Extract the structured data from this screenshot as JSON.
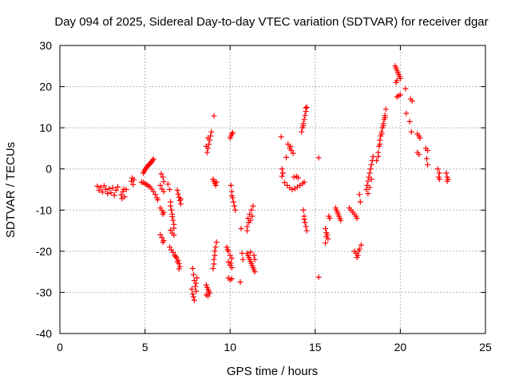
{
  "chart_data": {
    "type": "scatter",
    "title": "Day 094 of 2025, Sidereal Day-to-day VTEC variation (SDTVAR) for receiver dgar",
    "xlabel": "GPS time / hours",
    "ylabel": "SDTVAR / TECUs",
    "xlim": [
      0,
      25
    ],
    "ylim": [
      -40,
      30
    ],
    "xticks": [
      "0",
      "5",
      "10",
      "15",
      "20",
      "25"
    ],
    "yticks": [
      "-40",
      "-30",
      "-20",
      "-10",
      "0",
      "10",
      "20",
      "30"
    ],
    "grid": true,
    "marker": "+",
    "marker_color": "#ff0000",
    "series": [
      {
        "name": "SDTVAR",
        "points": [
          [
            2.2,
            -4.2
          ],
          [
            2.3,
            -5.2
          ],
          [
            2.4,
            -4.5
          ],
          [
            2.5,
            -5.6
          ],
          [
            2.6,
            -4.1
          ],
          [
            2.7,
            -5.0
          ],
          [
            2.8,
            -6.0
          ],
          [
            2.9,
            -4.8
          ],
          [
            3.0,
            -5.8
          ],
          [
            3.1,
            -4.6
          ],
          [
            3.2,
            -6.4
          ],
          [
            3.3,
            -5.2
          ],
          [
            3.4,
            -4.4
          ],
          [
            3.6,
            -6.3
          ],
          [
            3.7,
            -5.5
          ],
          [
            3.8,
            -6.8
          ],
          [
            3.9,
            -5.0
          ],
          [
            3.65,
            -7.2
          ],
          [
            3.75,
            -4.9
          ],
          [
            4.2,
            -3.0
          ],
          [
            4.25,
            -2.2
          ],
          [
            4.3,
            -3.8
          ],
          [
            4.35,
            -2.6
          ],
          [
            4.8,
            -3.2
          ],
          [
            4.9,
            -1.0
          ],
          [
            5.0,
            -0.2
          ],
          [
            5.1,
            0.4
          ],
          [
            5.2,
            0.9
          ],
          [
            5.3,
            1.3
          ],
          [
            5.4,
            1.8
          ],
          [
            5.5,
            2.4
          ],
          [
            4.95,
            -0.6
          ],
          [
            5.05,
            0.1
          ],
          [
            5.15,
            0.7
          ],
          [
            5.25,
            1.1
          ],
          [
            5.35,
            1.6
          ],
          [
            5.45,
            2.1
          ],
          [
            4.9,
            -3.3
          ],
          [
            5.0,
            -3.6
          ],
          [
            5.1,
            -3.8
          ],
          [
            5.2,
            -4.1
          ],
          [
            5.3,
            -4.4
          ],
          [
            5.4,
            -4.9
          ],
          [
            5.5,
            -5.5
          ],
          [
            5.6,
            -6.2
          ],
          [
            5.7,
            -7.0
          ],
          [
            5.75,
            -7.5
          ],
          [
            5.9,
            -4.0
          ],
          [
            6.0,
            -4.9
          ],
          [
            6.1,
            -5.5
          ],
          [
            5.95,
            -1.2
          ],
          [
            6.05,
            -2.0
          ],
          [
            6.1,
            -3.1
          ],
          [
            5.9,
            -9.5
          ],
          [
            6.0,
            -10.1
          ],
          [
            6.1,
            -10.6
          ],
          [
            6.05,
            -11.0
          ],
          [
            5.9,
            -16.0
          ],
          [
            6.0,
            -16.7
          ],
          [
            6.1,
            -17.4
          ],
          [
            6.05,
            -17.8
          ],
          [
            6.35,
            -3.7
          ],
          [
            6.45,
            -5.0
          ],
          [
            6.5,
            -8.0
          ],
          [
            6.55,
            -10.0
          ],
          [
            6.6,
            -11.6
          ],
          [
            6.65,
            -12.5
          ],
          [
            6.7,
            -13.5
          ],
          [
            6.6,
            -11.0
          ],
          [
            6.5,
            -9.0
          ],
          [
            6.7,
            -14.4
          ],
          [
            6.5,
            -14.9
          ],
          [
            6.6,
            -15.6
          ],
          [
            6.7,
            -16.1
          ],
          [
            6.45,
            -19.0
          ],
          [
            6.55,
            -19.7
          ],
          [
            6.65,
            -20.3
          ],
          [
            6.75,
            -21.0
          ],
          [
            6.85,
            -21.6
          ],
          [
            6.95,
            -22.2
          ],
          [
            7.0,
            -23.0
          ],
          [
            7.05,
            -23.7
          ],
          [
            6.9,
            -22.6
          ],
          [
            6.8,
            -21.3
          ],
          [
            7.0,
            -24.3
          ],
          [
            6.9,
            -5.2
          ],
          [
            6.95,
            -6.1
          ],
          [
            7.0,
            -6.9
          ],
          [
            7.05,
            -7.7
          ],
          [
            7.1,
            -8.5
          ],
          [
            7.1,
            -7.3
          ],
          [
            7.8,
            -24.2
          ],
          [
            7.85,
            -25.7
          ],
          [
            7.9,
            -27.1
          ],
          [
            7.95,
            -28.6
          ],
          [
            8.0,
            -29.7
          ],
          [
            7.8,
            -30.4
          ],
          [
            7.85,
            -31.1
          ],
          [
            7.9,
            -31.9
          ],
          [
            8.0,
            -27.8
          ],
          [
            8.05,
            -26.5
          ],
          [
            7.75,
            -29.2
          ],
          [
            8.6,
            -28.2
          ],
          [
            8.65,
            -28.8
          ],
          [
            8.7,
            -29.3
          ],
          [
            8.75,
            -29.7
          ],
          [
            8.8,
            -30.2
          ],
          [
            8.6,
            -30.6
          ],
          [
            8.7,
            -30.9
          ],
          [
            8.65,
            4.0
          ],
          [
            8.7,
            5.0
          ],
          [
            8.75,
            6.0
          ],
          [
            8.8,
            7.0
          ],
          [
            8.85,
            8.0
          ],
          [
            8.9,
            9.0
          ],
          [
            8.6,
            5.5
          ],
          [
            8.7,
            7.5
          ],
          [
            9.0,
            -24.2
          ],
          [
            9.05,
            -22.0
          ],
          [
            9.1,
            -20.0
          ],
          [
            9.15,
            -19.0
          ],
          [
            9.2,
            -17.8
          ],
          [
            9.05,
            -23.1
          ],
          [
            9.1,
            -21.0
          ],
          [
            9.0,
            -2.5
          ],
          [
            9.05,
            -3.0
          ],
          [
            9.1,
            -3.5
          ],
          [
            9.15,
            -4.0
          ],
          [
            9.2,
            -3.2
          ],
          [
            9.05,
            12.9
          ],
          [
            9.8,
            -19.0
          ],
          [
            9.9,
            -20.0
          ],
          [
            10.0,
            -21.0
          ],
          [
            10.1,
            -21.7
          ],
          [
            9.85,
            -19.6
          ],
          [
            9.9,
            -22.6
          ],
          [
            10.0,
            -23.4
          ],
          [
            10.1,
            -24.0
          ],
          [
            10.05,
            -22.9
          ],
          [
            9.9,
            -26.5
          ],
          [
            10.0,
            -27.0
          ],
          [
            10.1,
            -26.7
          ],
          [
            10.0,
            7.5
          ],
          [
            10.05,
            8.0
          ],
          [
            10.1,
            8.5
          ],
          [
            10.15,
            8.8
          ],
          [
            10.05,
            -4.0
          ],
          [
            10.1,
            -5.5
          ],
          [
            10.15,
            -7.0
          ],
          [
            10.2,
            -8.0
          ],
          [
            10.25,
            -9.0
          ],
          [
            10.3,
            -10.0
          ],
          [
            10.1,
            -6.5
          ],
          [
            10.65,
            -14.5
          ],
          [
            10.7,
            -20.5
          ],
          [
            10.75,
            -22.0
          ],
          [
            10.6,
            -27.5
          ],
          [
            11.0,
            -14.0
          ],
          [
            11.05,
            -12.0
          ],
          [
            11.1,
            -13.0
          ],
          [
            11.15,
            -11.0
          ],
          [
            11.2,
            -12.5
          ],
          [
            11.25,
            -10.0
          ],
          [
            11.3,
            -11.5
          ],
          [
            11.35,
            -9.0
          ],
          [
            11.0,
            -15.0
          ],
          [
            11.0,
            -20.5
          ],
          [
            11.05,
            -21.0
          ],
          [
            11.1,
            -21.5
          ],
          [
            11.15,
            -22.0
          ],
          [
            11.2,
            -22.5
          ],
          [
            11.25,
            -23.0
          ],
          [
            11.3,
            -23.5
          ],
          [
            11.35,
            -24.0
          ],
          [
            11.4,
            -24.5
          ],
          [
            11.45,
            -25.0
          ],
          [
            11.2,
            -20.2
          ],
          [
            11.4,
            -21.0
          ],
          [
            11.45,
            -22.0
          ],
          [
            13.0,
            7.8
          ],
          [
            13.2,
            -3.3
          ],
          [
            13.35,
            -4.0
          ],
          [
            13.5,
            -4.6
          ],
          [
            13.65,
            -5.0
          ],
          [
            13.8,
            -4.8
          ],
          [
            13.95,
            -4.4
          ],
          [
            14.1,
            -4.0
          ],
          [
            14.25,
            -3.6
          ],
          [
            14.35,
            -3.2
          ],
          [
            13.4,
            6.0
          ],
          [
            13.5,
            5.0
          ],
          [
            13.6,
            4.5
          ],
          [
            13.7,
            3.8
          ],
          [
            13.55,
            5.5
          ],
          [
            13.05,
            0.0
          ],
          [
            13.1,
            -1.0
          ],
          [
            13.05,
            -1.8
          ],
          [
            13.3,
            2.8
          ],
          [
            13.75,
            -2.0
          ],
          [
            13.9,
            -1.8
          ],
          [
            14.0,
            -2.2
          ],
          [
            14.2,
            9.0
          ],
          [
            14.25,
            10.0
          ],
          [
            14.3,
            11.0
          ],
          [
            14.35,
            12.0
          ],
          [
            14.4,
            13.0
          ],
          [
            14.45,
            14.0
          ],
          [
            14.5,
            15.0
          ],
          [
            14.3,
            10.5
          ],
          [
            14.45,
            14.8
          ],
          [
            14.3,
            -10.0
          ],
          [
            14.35,
            -11.5
          ],
          [
            14.4,
            -13.0
          ],
          [
            14.45,
            -14.0
          ],
          [
            14.5,
            -15.0
          ],
          [
            14.35,
            -12.2
          ],
          [
            15.2,
            2.7
          ],
          [
            15.2,
            -26.3
          ],
          [
            15.6,
            -14.5
          ],
          [
            15.65,
            -15.5
          ],
          [
            15.7,
            -16.0
          ],
          [
            15.75,
            -17.0
          ],
          [
            15.6,
            -18.0
          ],
          [
            15.65,
            -16.5
          ],
          [
            15.8,
            -11.5
          ],
          [
            15.85,
            -12.0
          ],
          [
            16.2,
            -9.5
          ],
          [
            16.25,
            -10.0
          ],
          [
            16.3,
            -10.5
          ],
          [
            16.35,
            -11.0
          ],
          [
            16.4,
            -11.5
          ],
          [
            16.45,
            -12.0
          ],
          [
            16.5,
            -12.5
          ],
          [
            17.0,
            -9.5
          ],
          [
            17.1,
            -10.0
          ],
          [
            17.2,
            -10.5
          ],
          [
            17.3,
            -11.0
          ],
          [
            17.4,
            -11.5
          ],
          [
            17.45,
            -12.0
          ],
          [
            17.3,
            -20.0
          ],
          [
            17.4,
            -20.5
          ],
          [
            17.5,
            -21.0
          ],
          [
            17.6,
            -19.5
          ],
          [
            17.7,
            -18.5
          ],
          [
            17.45,
            -21.5
          ],
          [
            17.55,
            -20.0
          ],
          [
            17.6,
            -6.2
          ],
          [
            17.65,
            -8.0
          ],
          [
            18.0,
            -5.0
          ],
          [
            18.05,
            -4.0
          ],
          [
            18.1,
            -3.0
          ],
          [
            18.15,
            -2.0
          ],
          [
            18.2,
            -1.0
          ],
          [
            18.25,
            0.0
          ],
          [
            18.3,
            1.0
          ],
          [
            18.35,
            2.0
          ],
          [
            18.4,
            3.0
          ],
          [
            18.1,
            -6.0
          ],
          [
            18.2,
            -4.5
          ],
          [
            18.3,
            -2.5
          ],
          [
            18.6,
            2.0
          ],
          [
            18.7,
            4.0
          ],
          [
            18.75,
            5.5
          ],
          [
            18.8,
            7.0
          ],
          [
            18.85,
            8.0
          ],
          [
            18.9,
            9.0
          ],
          [
            18.95,
            10.0
          ],
          [
            19.0,
            11.0
          ],
          [
            19.05,
            12.0
          ],
          [
            19.1,
            13.0
          ],
          [
            19.15,
            14.5
          ],
          [
            18.7,
            3.0
          ],
          [
            18.8,
            6.0
          ],
          [
            18.9,
            8.5
          ],
          [
            19.0,
            10.5
          ],
          [
            19.1,
            12.5
          ],
          [
            19.7,
            25.0
          ],
          [
            19.75,
            24.5
          ],
          [
            19.8,
            24.0
          ],
          [
            19.85,
            23.5
          ],
          [
            19.9,
            23.0
          ],
          [
            19.95,
            22.5
          ],
          [
            20.0,
            22.0
          ],
          [
            19.75,
            21.0
          ],
          [
            19.8,
            21.5
          ],
          [
            19.8,
            17.5
          ],
          [
            19.9,
            17.8
          ],
          [
            20.0,
            18.0
          ],
          [
            20.3,
            19.5
          ],
          [
            20.35,
            13.5
          ],
          [
            20.6,
            17.0
          ],
          [
            20.7,
            16.5
          ],
          [
            20.55,
            11.5
          ],
          [
            20.65,
            9.0
          ],
          [
            21.0,
            8.5
          ],
          [
            21.1,
            8.0
          ],
          [
            21.15,
            7.5
          ],
          [
            21.0,
            4.0
          ],
          [
            21.1,
            3.5
          ],
          [
            21.5,
            5.0
          ],
          [
            21.6,
            4.5
          ],
          [
            21.55,
            2.5
          ],
          [
            21.6,
            1.0
          ],
          [
            22.2,
            0.0
          ],
          [
            22.3,
            -1.0
          ],
          [
            22.25,
            -2.0
          ],
          [
            22.3,
            -2.5
          ],
          [
            22.7,
            -1.0
          ],
          [
            22.75,
            -2.0
          ],
          [
            22.8,
            -2.5
          ],
          [
            22.75,
            -3.0
          ]
        ]
      }
    ]
  }
}
